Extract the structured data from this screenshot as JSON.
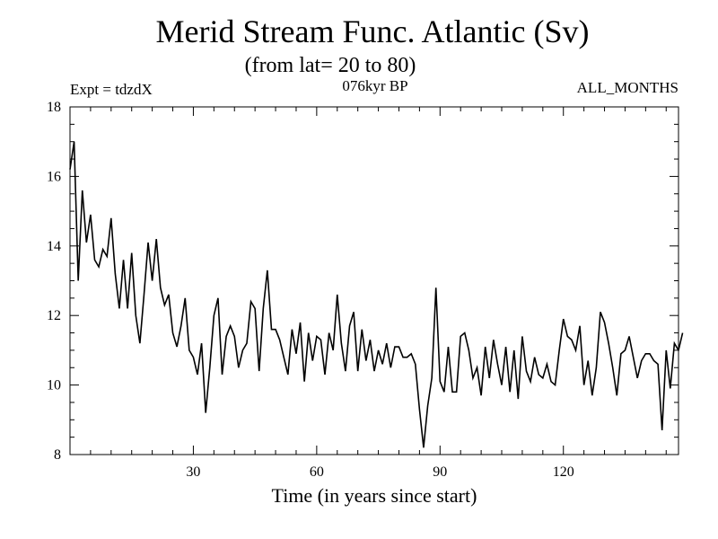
{
  "chart_data": {
    "type": "line",
    "title": "Merid Stream Func. Atlantic (Sv)",
    "subtitle": "(from lat= 20 to 80)",
    "left_annotation": "Expt = tdzdX",
    "center_annotation": "076kyr BP",
    "right_annotation": "ALL_MONTHS",
    "xlabel": "Time (in years since start)",
    "ylabel": "",
    "xlim": [
      0,
      148
    ],
    "ylim": [
      8,
      18
    ],
    "xticks": [
      30,
      60,
      90,
      120
    ],
    "yticks": [
      8,
      10,
      12,
      14,
      16,
      18
    ],
    "grid": false,
    "line_color": "#000000",
    "series": [
      {
        "x_start": 0,
        "x_step": 1,
        "values": [
          16.2,
          17.0,
          13.0,
          15.6,
          14.1,
          14.9,
          13.6,
          13.4,
          13.9,
          13.7,
          14.8,
          13.2,
          12.2,
          13.6,
          12.2,
          13.8,
          12.0,
          11.2,
          12.6,
          14.1,
          13.0,
          14.2,
          12.8,
          12.3,
          12.6,
          11.5,
          11.1,
          11.7,
          12.5,
          11.0,
          10.8,
          10.3,
          11.2,
          9.2,
          10.5,
          12.0,
          12.5,
          10.3,
          11.4,
          11.7,
          11.4,
          10.5,
          11.0,
          11.2,
          12.4,
          12.2,
          10.4,
          12.2,
          13.3,
          11.6,
          11.6,
          11.3,
          10.8,
          10.3,
          11.6,
          10.9,
          11.8,
          10.1,
          11.5,
          10.7,
          11.4,
          11.3,
          10.3,
          11.5,
          11.0,
          12.6,
          11.2,
          10.4,
          11.7,
          12.1,
          10.4,
          11.6,
          10.7,
          11.3,
          10.4,
          11.0,
          10.6,
          11.2,
          10.5,
          11.1,
          11.1,
          10.8,
          10.8,
          10.9,
          10.6,
          9.3,
          8.2,
          9.4,
          10.2,
          12.8,
          10.1,
          9.8,
          11.1,
          9.8,
          9.8,
          11.4,
          11.5,
          11.0,
          10.2,
          10.5,
          9.7,
          11.1,
          10.2,
          11.3,
          10.6,
          10.0,
          11.1,
          9.8,
          11.0,
          9.6,
          11.4,
          10.4,
          10.1,
          10.8,
          10.3,
          10.2,
          10.6,
          10.1,
          10.0,
          11.0,
          11.9,
          11.4,
          11.3,
          11.0,
          11.7,
          10.0,
          10.7,
          9.7,
          10.5,
          12.1,
          11.8,
          11.2,
          10.5,
          9.7,
          10.9,
          11.0,
          11.4,
          10.8,
          10.2,
          10.7,
          10.9,
          10.9,
          10.7,
          10.6,
          8.7,
          11.0,
          9.9,
          11.2,
          11.0,
          11.5
        ]
      }
    ]
  }
}
